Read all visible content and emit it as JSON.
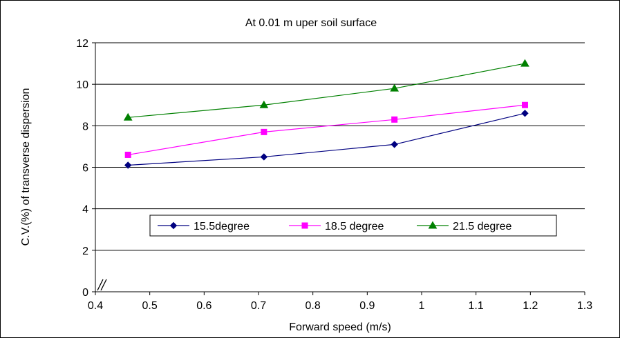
{
  "chart_data": {
    "type": "line",
    "title": "At 0.01 m uper soil surface",
    "xlabel": "Forward speed (m/s)",
    "ylabel": "C.V.(%) of transverse dispersion",
    "xlim": [
      0.4,
      1.3
    ],
    "ylim": [
      0,
      12
    ],
    "x_ticks": [
      "0.4",
      "0.5",
      "0.6",
      "0.7",
      "0.8",
      "0.9",
      "1",
      "1.1",
      "1.2",
      "1.3"
    ],
    "y_ticks": [
      "0",
      "2",
      "4",
      "6",
      "8",
      "10",
      "12"
    ],
    "grid": "horizontal",
    "axis_break": "x",
    "legend_position": "inside-center",
    "series": [
      {
        "name": "15.5degree",
        "color": "#000080",
        "marker": "diamond",
        "x": [
          0.46,
          0.71,
          0.95,
          1.19
        ],
        "y": [
          6.1,
          6.5,
          7.1,
          8.6
        ]
      },
      {
        "name": "18.5 degree",
        "color": "#ff00ff",
        "marker": "square",
        "x": [
          0.46,
          0.71,
          0.95,
          1.19
        ],
        "y": [
          6.6,
          7.7,
          8.3,
          9.0
        ]
      },
      {
        "name": "21.5 degree",
        "color": "#008000",
        "marker": "triangle",
        "x": [
          0.46,
          0.71,
          0.95,
          1.19
        ],
        "y": [
          8.4,
          9.0,
          9.8,
          11.0
        ]
      }
    ]
  }
}
